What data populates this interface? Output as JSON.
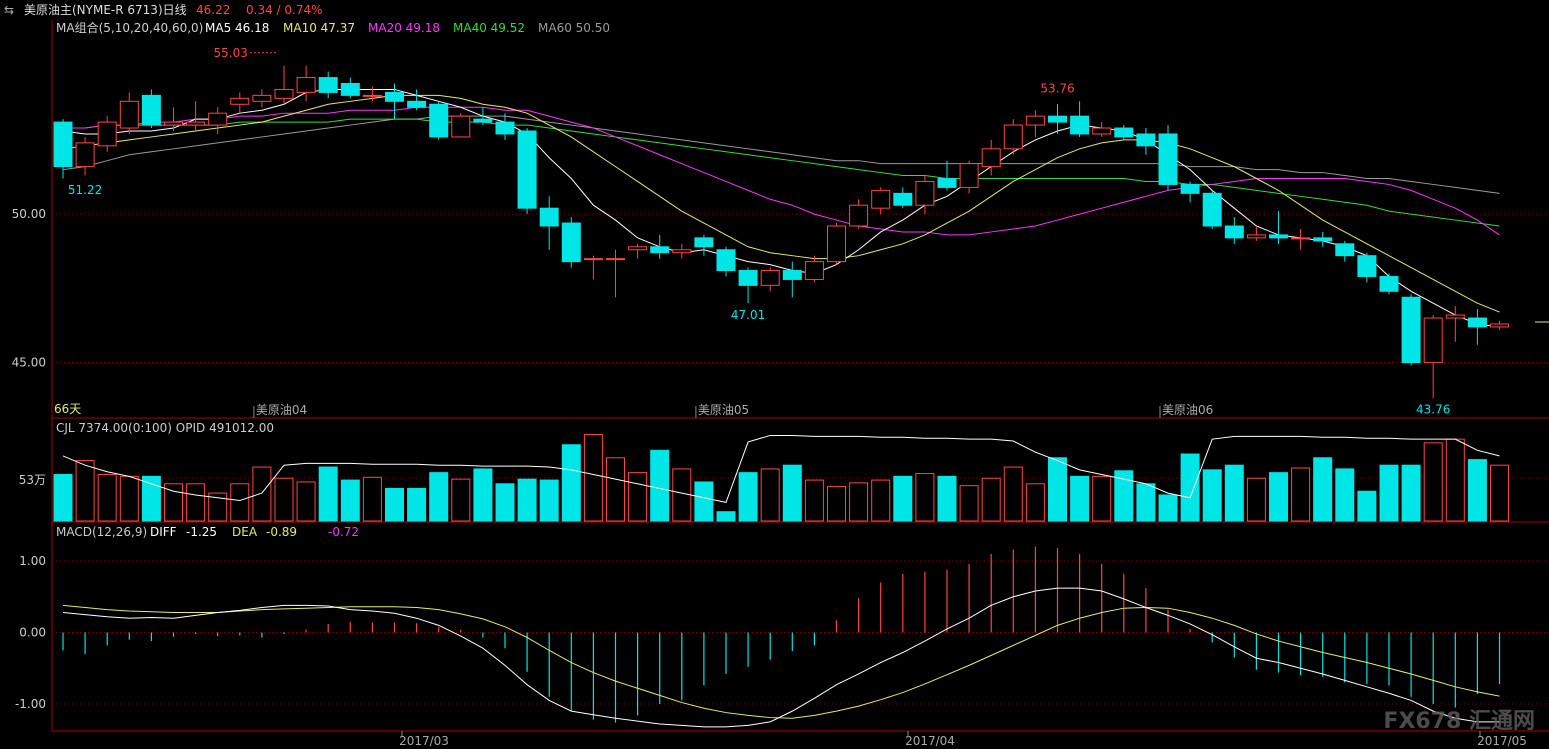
{
  "header": {
    "symbol_icon": "swap-arrows-icon",
    "title": "美原油主(NYME-R 6713)日线",
    "price": "46.22",
    "change": "0.34 / 0.74%"
  },
  "ma_legend": [
    {
      "label": "MA组合(5,10,20,40,60,0)",
      "color": "#cfcfcf"
    },
    {
      "label": "MA5 46.18",
      "color": "#ffffff"
    },
    {
      "label": "MA10 47.37",
      "color": "#e8e86e"
    },
    {
      "label": "MA20 49.18",
      "color": "#ff33ff"
    },
    {
      "label": "MA40 49.52",
      "color": "#33dd33"
    },
    {
      "label": "MA60 50.50",
      "color": "#9a9a9a"
    }
  ],
  "colors": {
    "up": "#ff4444",
    "down": "#00e5e5",
    "axis": "#aa0000",
    "text": "#cccccc"
  },
  "chart_data": [
    {
      "type": "candlestick",
      "name": "price",
      "y_ticks": [
        "50.00",
        "45.00"
      ],
      "ylim": [
        43.2,
        56.0
      ],
      "period_label": "66天",
      "contract_labels": [
        "美原油04",
        "美原油05",
        "美原油06"
      ],
      "annotations": [
        "55.03",
        "53.76",
        "51.22",
        "47.01",
        "43.76"
      ],
      "candles": [
        {
          "o": 53.1,
          "c": 51.6,
          "h": 53.2,
          "l": 51.2
        },
        {
          "o": 51.6,
          "c": 52.4,
          "h": 52.6,
          "l": 51.3
        },
        {
          "o": 52.3,
          "c": 53.1,
          "h": 53.3,
          "l": 52.1
        },
        {
          "o": 52.9,
          "c": 53.8,
          "h": 54.1,
          "l": 52.7
        },
        {
          "o": 54.0,
          "c": 53.0,
          "h": 54.2,
          "l": 52.9
        },
        {
          "o": 53.0,
          "c": 53.1,
          "h": 53.6,
          "l": 52.8
        },
        {
          "o": 53.0,
          "c": 53.1,
          "h": 53.8,
          "l": 52.8
        },
        {
          "o": 53.0,
          "c": 53.4,
          "h": 53.6,
          "l": 52.7
        },
        {
          "o": 53.7,
          "c": 53.9,
          "h": 54.1,
          "l": 53.4
        },
        {
          "o": 53.8,
          "c": 54.0,
          "h": 54.2,
          "l": 53.6
        },
        {
          "o": 53.9,
          "c": 54.2,
          "h": 55.0,
          "l": 53.7
        },
        {
          "o": 54.1,
          "c": 54.6,
          "h": 55.0,
          "l": 53.8
        },
        {
          "o": 54.6,
          "c": 54.1,
          "h": 54.8,
          "l": 53.9
        },
        {
          "o": 54.4,
          "c": 54.0,
          "h": 54.6,
          "l": 53.9
        },
        {
          "o": 54.0,
          "c": 54.0,
          "h": 54.3,
          "l": 53.8
        },
        {
          "o": 54.1,
          "c": 53.8,
          "h": 54.4,
          "l": 53.2
        },
        {
          "o": 53.8,
          "c": 53.6,
          "h": 54.2,
          "l": 53.5
        },
        {
          "o": 53.7,
          "c": 52.6,
          "h": 53.8,
          "l": 52.5
        },
        {
          "o": 52.6,
          "c": 53.3,
          "h": 53.4,
          "l": 52.6
        },
        {
          "o": 53.2,
          "c": 53.1,
          "h": 53.6,
          "l": 53.0
        },
        {
          "o": 53.1,
          "c": 52.7,
          "h": 53.4,
          "l": 52.5
        },
        {
          "o": 52.8,
          "c": 50.2,
          "h": 52.9,
          "l": 50.0
        },
        {
          "o": 50.2,
          "c": 49.6,
          "h": 50.6,
          "l": 48.8
        },
        {
          "o": 49.7,
          "c": 48.4,
          "h": 49.9,
          "l": 48.2
        },
        {
          "o": 48.5,
          "c": 48.5,
          "h": 48.6,
          "l": 47.8
        },
        {
          "o": 48.5,
          "c": 48.5,
          "h": 48.8,
          "l": 47.2
        },
        {
          "o": 48.8,
          "c": 48.9,
          "h": 49.0,
          "l": 48.5
        },
        {
          "o": 48.9,
          "c": 48.7,
          "h": 49.3,
          "l": 48.5
        },
        {
          "o": 48.7,
          "c": 48.8,
          "h": 49.0,
          "l": 48.5
        },
        {
          "o": 49.2,
          "c": 48.9,
          "h": 49.3,
          "l": 48.6
        },
        {
          "o": 48.8,
          "c": 48.1,
          "h": 48.9,
          "l": 47.9
        },
        {
          "o": 48.1,
          "c": 47.6,
          "h": 48.2,
          "l": 47.0
        },
        {
          "o": 47.6,
          "c": 48.1,
          "h": 48.2,
          "l": 47.4
        },
        {
          "o": 48.1,
          "c": 47.8,
          "h": 48.4,
          "l": 47.2
        },
        {
          "o": 47.8,
          "c": 48.4,
          "h": 48.6,
          "l": 47.7
        },
        {
          "o": 48.4,
          "c": 49.6,
          "h": 49.7,
          "l": 48.3
        },
        {
          "o": 49.6,
          "c": 50.3,
          "h": 50.5,
          "l": 49.5
        },
        {
          "o": 50.2,
          "c": 50.8,
          "h": 50.9,
          "l": 50.0
        },
        {
          "o": 50.7,
          "c": 50.3,
          "h": 50.9,
          "l": 50.2
        },
        {
          "o": 50.3,
          "c": 51.1,
          "h": 51.3,
          "l": 50.0
        },
        {
          "o": 51.2,
          "c": 50.9,
          "h": 51.8,
          "l": 50.8
        },
        {
          "o": 50.9,
          "c": 51.7,
          "h": 51.8,
          "l": 50.7
        },
        {
          "o": 51.6,
          "c": 52.2,
          "h": 52.5,
          "l": 51.3
        },
        {
          "o": 52.2,
          "c": 53.0,
          "h": 53.2,
          "l": 52.0
        },
        {
          "o": 53.0,
          "c": 53.3,
          "h": 53.5,
          "l": 52.6
        },
        {
          "o": 53.3,
          "c": 53.1,
          "h": 53.7,
          "l": 52.7
        },
        {
          "o": 53.3,
          "c": 52.7,
          "h": 53.8,
          "l": 52.6
        },
        {
          "o": 52.7,
          "c": 52.9,
          "h": 53.1,
          "l": 52.6
        },
        {
          "o": 52.9,
          "c": 52.6,
          "h": 53.0,
          "l": 52.5
        },
        {
          "o": 52.7,
          "c": 52.3,
          "h": 52.9,
          "l": 52.0
        },
        {
          "o": 52.7,
          "c": 51.0,
          "h": 53.0,
          "l": 50.8
        },
        {
          "o": 51.0,
          "c": 50.7,
          "h": 51.1,
          "l": 50.4
        },
        {
          "o": 50.7,
          "c": 49.6,
          "h": 50.8,
          "l": 49.5
        },
        {
          "o": 49.6,
          "c": 49.2,
          "h": 49.9,
          "l": 49.0
        },
        {
          "o": 49.2,
          "c": 49.3,
          "h": 49.6,
          "l": 49.1
        },
        {
          "o": 49.3,
          "c": 49.2,
          "h": 50.1,
          "l": 49.0
        },
        {
          "o": 49.2,
          "c": 49.2,
          "h": 49.5,
          "l": 48.8
        },
        {
          "o": 49.2,
          "c": 49.1,
          "h": 49.4,
          "l": 48.9
        },
        {
          "o": 49.0,
          "c": 48.6,
          "h": 49.1,
          "l": 48.4
        },
        {
          "o": 48.6,
          "c": 47.9,
          "h": 48.7,
          "l": 47.7
        },
        {
          "o": 47.9,
          "c": 47.4,
          "h": 48.0,
          "l": 47.3
        },
        {
          "o": 47.2,
          "c": 45.0,
          "h": 47.3,
          "l": 44.9
        },
        {
          "o": 45.0,
          "c": 46.5,
          "h": 46.6,
          "l": 43.8
        },
        {
          "o": 46.5,
          "c": 46.6,
          "h": 46.9,
          "l": 45.7
        },
        {
          "o": 46.5,
          "c": 46.2,
          "h": 46.8,
          "l": 45.6
        },
        {
          "o": 46.2,
          "c": 46.3,
          "h": 46.4,
          "l": 46.1
        }
      ],
      "ma5": [
        52.8,
        52.7,
        52.7,
        52.8,
        52.8,
        52.9,
        53.2,
        53.2,
        53.4,
        53.5,
        53.7,
        54.1,
        54.2,
        54.2,
        54.2,
        54.2,
        54.0,
        53.8,
        53.6,
        53.3,
        53.1,
        52.7,
        51.9,
        51.2,
        50.3,
        49.8,
        49.2,
        48.9,
        48.7,
        48.8,
        48.6,
        48.4,
        48.3,
        48.1,
        48.0,
        48.3,
        48.8,
        49.4,
        49.8,
        50.3,
        50.6,
        51.1,
        51.6,
        52.1,
        52.5,
        52.8,
        53.0,
        52.9,
        52.8,
        52.5,
        52.0,
        51.5,
        50.8,
        50.2,
        49.6,
        49.3,
        49.2,
        49.1,
        48.9,
        48.6,
        47.9,
        47.4,
        47.0,
        46.6,
        46.3,
        46.2
      ],
      "ma10": [
        52.2,
        52.3,
        52.4,
        52.5,
        52.6,
        52.7,
        52.8,
        52.9,
        53.0,
        53.1,
        53.3,
        53.5,
        53.7,
        53.8,
        53.9,
        54.0,
        54.0,
        54.0,
        53.9,
        53.7,
        53.6,
        53.4,
        53.0,
        52.6,
        52.1,
        51.6,
        51.1,
        50.6,
        50.1,
        49.7,
        49.3,
        48.9,
        48.7,
        48.6,
        48.5,
        48.5,
        48.6,
        48.8,
        49.0,
        49.3,
        49.7,
        50.1,
        50.6,
        51.1,
        51.5,
        51.9,
        52.2,
        52.4,
        52.5,
        52.5,
        52.4,
        52.2,
        51.9,
        51.6,
        51.2,
        50.8,
        50.3,
        49.8,
        49.4,
        49.0,
        48.6,
        48.2,
        47.8,
        47.4,
        47.0,
        46.7
      ],
      "ma20": [
        52.9,
        52.9,
        53.0,
        53.0,
        53.1,
        53.1,
        53.2,
        53.2,
        53.3,
        53.3,
        53.4,
        53.4,
        53.4,
        53.5,
        53.5,
        53.5,
        53.6,
        53.6,
        53.6,
        53.6,
        53.5,
        53.5,
        53.3,
        53.1,
        52.9,
        52.6,
        52.3,
        52.0,
        51.7,
        51.4,
        51.1,
        50.8,
        50.5,
        50.3,
        50.0,
        49.8,
        49.6,
        49.5,
        49.4,
        49.4,
        49.3,
        49.3,
        49.4,
        49.5,
        49.6,
        49.8,
        50.0,
        50.2,
        50.4,
        50.6,
        50.8,
        50.9,
        51.0,
        51.1,
        51.2,
        51.2,
        51.2,
        51.2,
        51.2,
        51.1,
        51.0,
        50.8,
        50.5,
        50.2,
        49.8,
        49.3
      ],
      "ma40": [
        52.9,
        52.9,
        53.0,
        53.0,
        53.0,
        53.0,
        53.0,
        53.0,
        53.1,
        53.1,
        53.1,
        53.1,
        53.1,
        53.2,
        53.2,
        53.2,
        53.2,
        53.1,
        53.1,
        53.1,
        53.0,
        53.0,
        52.9,
        52.8,
        52.7,
        52.6,
        52.5,
        52.4,
        52.3,
        52.2,
        52.1,
        52.0,
        51.9,
        51.8,
        51.7,
        51.6,
        51.5,
        51.4,
        51.3,
        51.3,
        51.2,
        51.2,
        51.2,
        51.2,
        51.2,
        51.2,
        51.2,
        51.2,
        51.2,
        51.1,
        51.1,
        51.0,
        51.0,
        50.9,
        50.8,
        50.7,
        50.6,
        50.5,
        50.4,
        50.3,
        50.1,
        50.0,
        49.9,
        49.8,
        49.7,
        49.6
      ],
      "ma60": [
        51.5,
        51.6,
        51.8,
        52.0,
        52.1,
        52.2,
        52.3,
        52.4,
        52.5,
        52.6,
        52.7,
        52.8,
        52.9,
        53.0,
        53.1,
        53.2,
        53.2,
        53.3,
        53.3,
        53.3,
        53.3,
        53.2,
        53.1,
        53.0,
        52.9,
        52.8,
        52.7,
        52.6,
        52.5,
        52.4,
        52.3,
        52.2,
        52.1,
        52.0,
        51.9,
        51.8,
        51.8,
        51.7,
        51.7,
        51.7,
        51.7,
        51.7,
        51.7,
        51.7,
        51.7,
        51.7,
        51.7,
        51.7,
        51.7,
        51.7,
        51.7,
        51.6,
        51.6,
        51.6,
        51.5,
        51.5,
        51.4,
        51.4,
        51.3,
        51.2,
        51.2,
        51.1,
        51.0,
        50.9,
        50.8,
        50.7
      ]
    },
    {
      "type": "bar",
      "name": "volume",
      "legend": "CJL  7374.00(0:100)    OPID   491012.00",
      "y_ticks": [
        "53万"
      ],
      "ylim": [
        0,
        100
      ],
      "values": [
        50,
        65,
        50,
        48,
        48,
        40,
        40,
        30,
        40,
        58,
        46,
        42,
        58,
        44,
        47,
        35,
        35,
        52,
        45,
        56,
        40,
        45,
        44,
        82,
        93,
        68,
        52,
        76,
        56,
        42,
        10,
        52,
        56,
        60,
        44,
        37,
        41,
        44,
        48,
        51,
        48,
        38,
        46,
        58,
        40,
        68,
        48,
        48,
        54,
        40,
        28,
        72,
        55,
        60,
        46,
        52,
        57,
        68,
        56,
        32,
        60,
        60,
        84,
        88,
        66,
        60
      ],
      "opid": [
        70,
        60,
        53,
        48,
        40,
        32,
        28,
        25,
        22,
        30,
        60,
        62,
        62,
        62,
        61,
        61,
        61,
        60,
        60,
        59,
        59,
        59,
        58,
        55,
        50,
        45,
        40,
        35,
        30,
        25,
        20,
        85,
        92,
        92,
        91,
        91,
        91,
        90,
        90,
        89,
        89,
        88,
        88,
        86,
        74,
        65,
        55,
        50,
        45,
        40,
        30,
        25,
        88,
        91,
        91,
        91,
        91,
        90,
        90,
        89,
        89,
        88,
        88,
        88,
        76,
        70
      ]
    },
    {
      "type": "histogram",
      "name": "macd",
      "legend": [
        "MACD(12,26,9)",
        "DIFF",
        "-1.25",
        "DEA",
        "-0.89",
        "-0.72"
      ],
      "legend_colors": [
        "#cccccc",
        "#ffffff",
        "#ffffff",
        "#e8e86e",
        "#e8e86e",
        "#ff33ff"
      ],
      "y_ticks": [
        "1.00",
        "0.00",
        "-1.00"
      ],
      "ylim": [
        -1.35,
        1.35
      ],
      "x_labels": [
        "2017/03",
        "2017/04",
        "2017/05"
      ],
      "hist": [
        -0.25,
        -0.3,
        -0.18,
        -0.1,
        -0.12,
        -0.06,
        -0.02,
        -0.05,
        -0.04,
        -0.07,
        -0.02,
        0.04,
        0.12,
        0.15,
        0.14,
        0.14,
        0.13,
        0.08,
        0.04,
        -0.07,
        -0.22,
        -0.55,
        -0.9,
        -1.1,
        -1.22,
        -1.26,
        -1.16,
        -1.0,
        -0.95,
        -0.74,
        -0.58,
        -0.48,
        -0.38,
        -0.26,
        -0.18,
        0.17,
        0.48,
        0.7,
        0.82,
        0.85,
        0.88,
        0.96,
        1.1,
        1.16,
        1.2,
        1.18,
        1.1,
        0.96,
        0.82,
        0.62,
        0.32,
        0.05,
        -0.14,
        -0.35,
        -0.52,
        -0.56,
        -0.6,
        -0.62,
        -0.7,
        -0.72,
        -0.74,
        -0.9,
        -1.0,
        -1.05,
        -0.86,
        -0.72
      ],
      "diff": [
        0.28,
        0.25,
        0.22,
        0.2,
        0.21,
        0.2,
        0.24,
        0.28,
        0.31,
        0.35,
        0.38,
        0.38,
        0.37,
        0.32,
        0.3,
        0.27,
        0.2,
        0.1,
        -0.05,
        -0.22,
        -0.46,
        -0.73,
        -0.95,
        -1.1,
        -1.15,
        -1.2,
        -1.24,
        -1.28,
        -1.3,
        -1.32,
        -1.32,
        -1.3,
        -1.25,
        -1.1,
        -0.92,
        -0.73,
        -0.58,
        -0.42,
        -0.28,
        -0.12,
        0.05,
        0.2,
        0.38,
        0.5,
        0.58,
        0.62,
        0.62,
        0.58,
        0.47,
        0.35,
        0.24,
        0.12,
        -0.03,
        -0.2,
        -0.36,
        -0.42,
        -0.5,
        -0.58,
        -0.67,
        -0.76,
        -0.85,
        -0.95,
        -1.1,
        -1.2,
        -1.25,
        -1.25
      ],
      "dea": [
        0.38,
        0.35,
        0.32,
        0.3,
        0.29,
        0.28,
        0.28,
        0.28,
        0.3,
        0.32,
        0.33,
        0.34,
        0.35,
        0.36,
        0.36,
        0.36,
        0.35,
        0.32,
        0.26,
        0.19,
        0.08,
        -0.07,
        -0.25,
        -0.42,
        -0.56,
        -0.68,
        -0.78,
        -0.88,
        -0.98,
        -1.06,
        -1.12,
        -1.16,
        -1.19,
        -1.2,
        -1.16,
        -1.1,
        -1.03,
        -0.94,
        -0.84,
        -0.72,
        -0.59,
        -0.46,
        -0.32,
        -0.18,
        -0.04,
        0.1,
        0.2,
        0.28,
        0.34,
        0.35,
        0.34,
        0.28,
        0.2,
        0.1,
        -0.02,
        -0.12,
        -0.2,
        -0.28,
        -0.35,
        -0.42,
        -0.5,
        -0.58,
        -0.67,
        -0.76,
        -0.83,
        -0.89
      ]
    }
  ],
  "watermark": "FX678 汇通网"
}
